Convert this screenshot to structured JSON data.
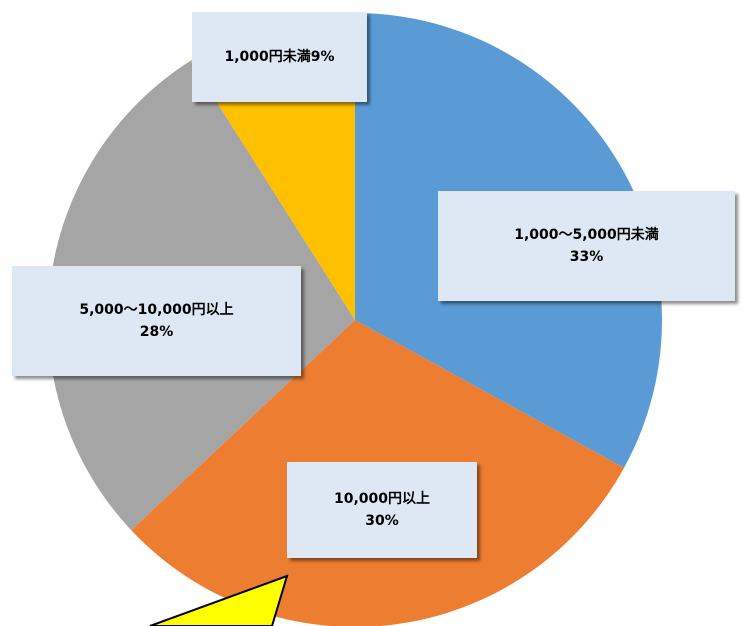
{
  "chart_data": {
    "type": "pie",
    "start_angle_deg": 0,
    "direction": "clockwise",
    "slices": [
      {
        "label": "1,000〜5,000円未満",
        "value": 33,
        "percent_label": "33%",
        "color": "#5b9bd5"
      },
      {
        "label": "10,000円以上",
        "value": 30,
        "percent_label": "30%",
        "color": "#ed7d31"
      },
      {
        "label": "5,000〜10,000円以上",
        "value": 28,
        "percent_label": "28%",
        "color": "#a5a5a5"
      },
      {
        "label": "1,000円未満",
        "value": 9,
        "percent_label": "9%",
        "color": "#ffc000"
      }
    ]
  },
  "callouts": {
    "under_1000": {
      "text": "1,000円未満9%"
    },
    "range_1000_5000": {
      "label": "1,000〜5,000円未満",
      "percent": "33%"
    },
    "range_5000_10000": {
      "label": "5,000〜10,000円以上",
      "percent": "28%"
    },
    "over_10000": {
      "label": "10,000円以上",
      "percent": "30%"
    }
  },
  "pointer_color": "#ffff00"
}
